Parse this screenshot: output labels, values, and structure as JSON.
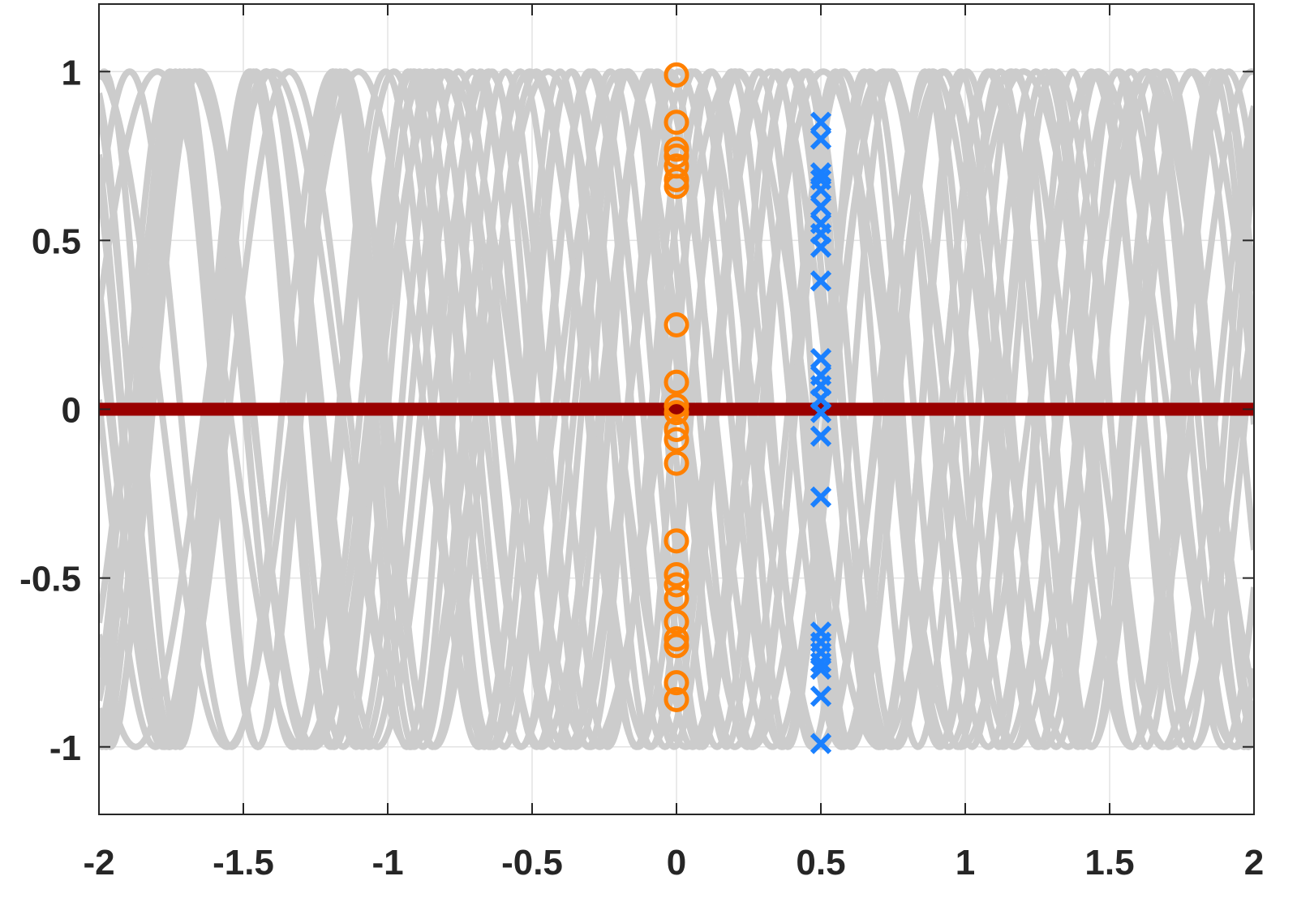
{
  "chart_data": {
    "type": "line",
    "title": "",
    "xlabel": "",
    "ylabel": "",
    "xlim": [
      -2,
      2
    ],
    "ylim": [
      -1.2,
      1.2
    ],
    "grid": true,
    "legend": "none",
    "xticks": [
      {
        "value": -2,
        "label": "-2"
      },
      {
        "value": -1.5,
        "label": "-1.5"
      },
      {
        "value": -1,
        "label": "-1"
      },
      {
        "value": -0.5,
        "label": "-0.5"
      },
      {
        "value": 0,
        "label": "0"
      },
      {
        "value": 0.5,
        "label": "0.5"
      },
      {
        "value": 1,
        "label": "1"
      },
      {
        "value": 1.5,
        "label": "1.5"
      },
      {
        "value": 2,
        "label": "2"
      }
    ],
    "yticks": [
      {
        "value": 1,
        "label": "1"
      },
      {
        "value": 0.5,
        "label": "0.5"
      },
      {
        "value": 0,
        "label": "0"
      },
      {
        "value": -0.5,
        "label": "-0.5"
      },
      {
        "value": -1,
        "label": "-1"
      }
    ],
    "colors": {
      "background_curves": "#cccccc",
      "zero_line": "#990000",
      "circles": "#ff8000",
      "crosses": "#1a80ff",
      "axis": "#262626",
      "grid": "#e3e3e3"
    },
    "series": [
      {
        "kind": "sinusoids",
        "color": "#cccccc",
        "x_range": [
          -2,
          2
        ],
        "form": "y = sin(2*pi*f*x + phase)",
        "curves": [
          {
            "frequency": 1.0,
            "phase": 0.3
          },
          {
            "frequency": 1.15,
            "phase": 1.2
          },
          {
            "frequency": 1.25,
            "phase": 2.1
          },
          {
            "frequency": 1.35,
            "phase": 3.0
          },
          {
            "frequency": 1.45,
            "phase": 4.2
          },
          {
            "frequency": 1.55,
            "phase": 5.1
          },
          {
            "frequency": 1.65,
            "phase": 0.9
          },
          {
            "frequency": 1.75,
            "phase": 1.8
          },
          {
            "frequency": 1.85,
            "phase": 2.7
          },
          {
            "frequency": 1.95,
            "phase": 3.6
          },
          {
            "frequency": 1.05,
            "phase": 4.5
          },
          {
            "frequency": 1.2,
            "phase": 5.4
          },
          {
            "frequency": 1.3,
            "phase": 0.6
          },
          {
            "frequency": 1.4,
            "phase": 1.5
          },
          {
            "frequency": 1.5,
            "phase": 2.4
          },
          {
            "frequency": 1.6,
            "phase": 3.3
          },
          {
            "frequency": 1.7,
            "phase": 4.8
          },
          {
            "frequency": 1.8,
            "phase": 5.7
          },
          {
            "frequency": 1.9,
            "phase": 0.1
          },
          {
            "frequency": 1.1,
            "phase": 2.9
          },
          {
            "frequency": 1.62,
            "phase": 3.9
          },
          {
            "frequency": 1.42,
            "phase": 5.9
          }
        ]
      },
      {
        "kind": "hline",
        "color": "#990000",
        "y": 0
      },
      {
        "kind": "markers",
        "marker": "circle",
        "color": "#ff8000",
        "x": 0,
        "y": [
          0.99,
          0.85,
          0.77,
          0.75,
          0.72,
          0.68,
          0.66,
          0.25,
          0.08,
          0.01,
          -0.01,
          -0.06,
          -0.09,
          -0.16,
          -0.39,
          -0.49,
          -0.52,
          -0.56,
          -0.63,
          -0.68,
          -0.7,
          -0.81,
          -0.86
        ]
      },
      {
        "kind": "markers",
        "marker": "cross",
        "color": "#1a80ff",
        "x": 0.5,
        "y": [
          0.85,
          0.8,
          0.7,
          0.68,
          0.65,
          0.6,
          0.55,
          0.52,
          0.48,
          0.38,
          0.15,
          0.1,
          0.07,
          0.03,
          -0.01,
          -0.08,
          -0.26,
          -0.66,
          -0.69,
          -0.72,
          -0.75,
          -0.77,
          -0.85,
          -0.99
        ]
      }
    ]
  }
}
